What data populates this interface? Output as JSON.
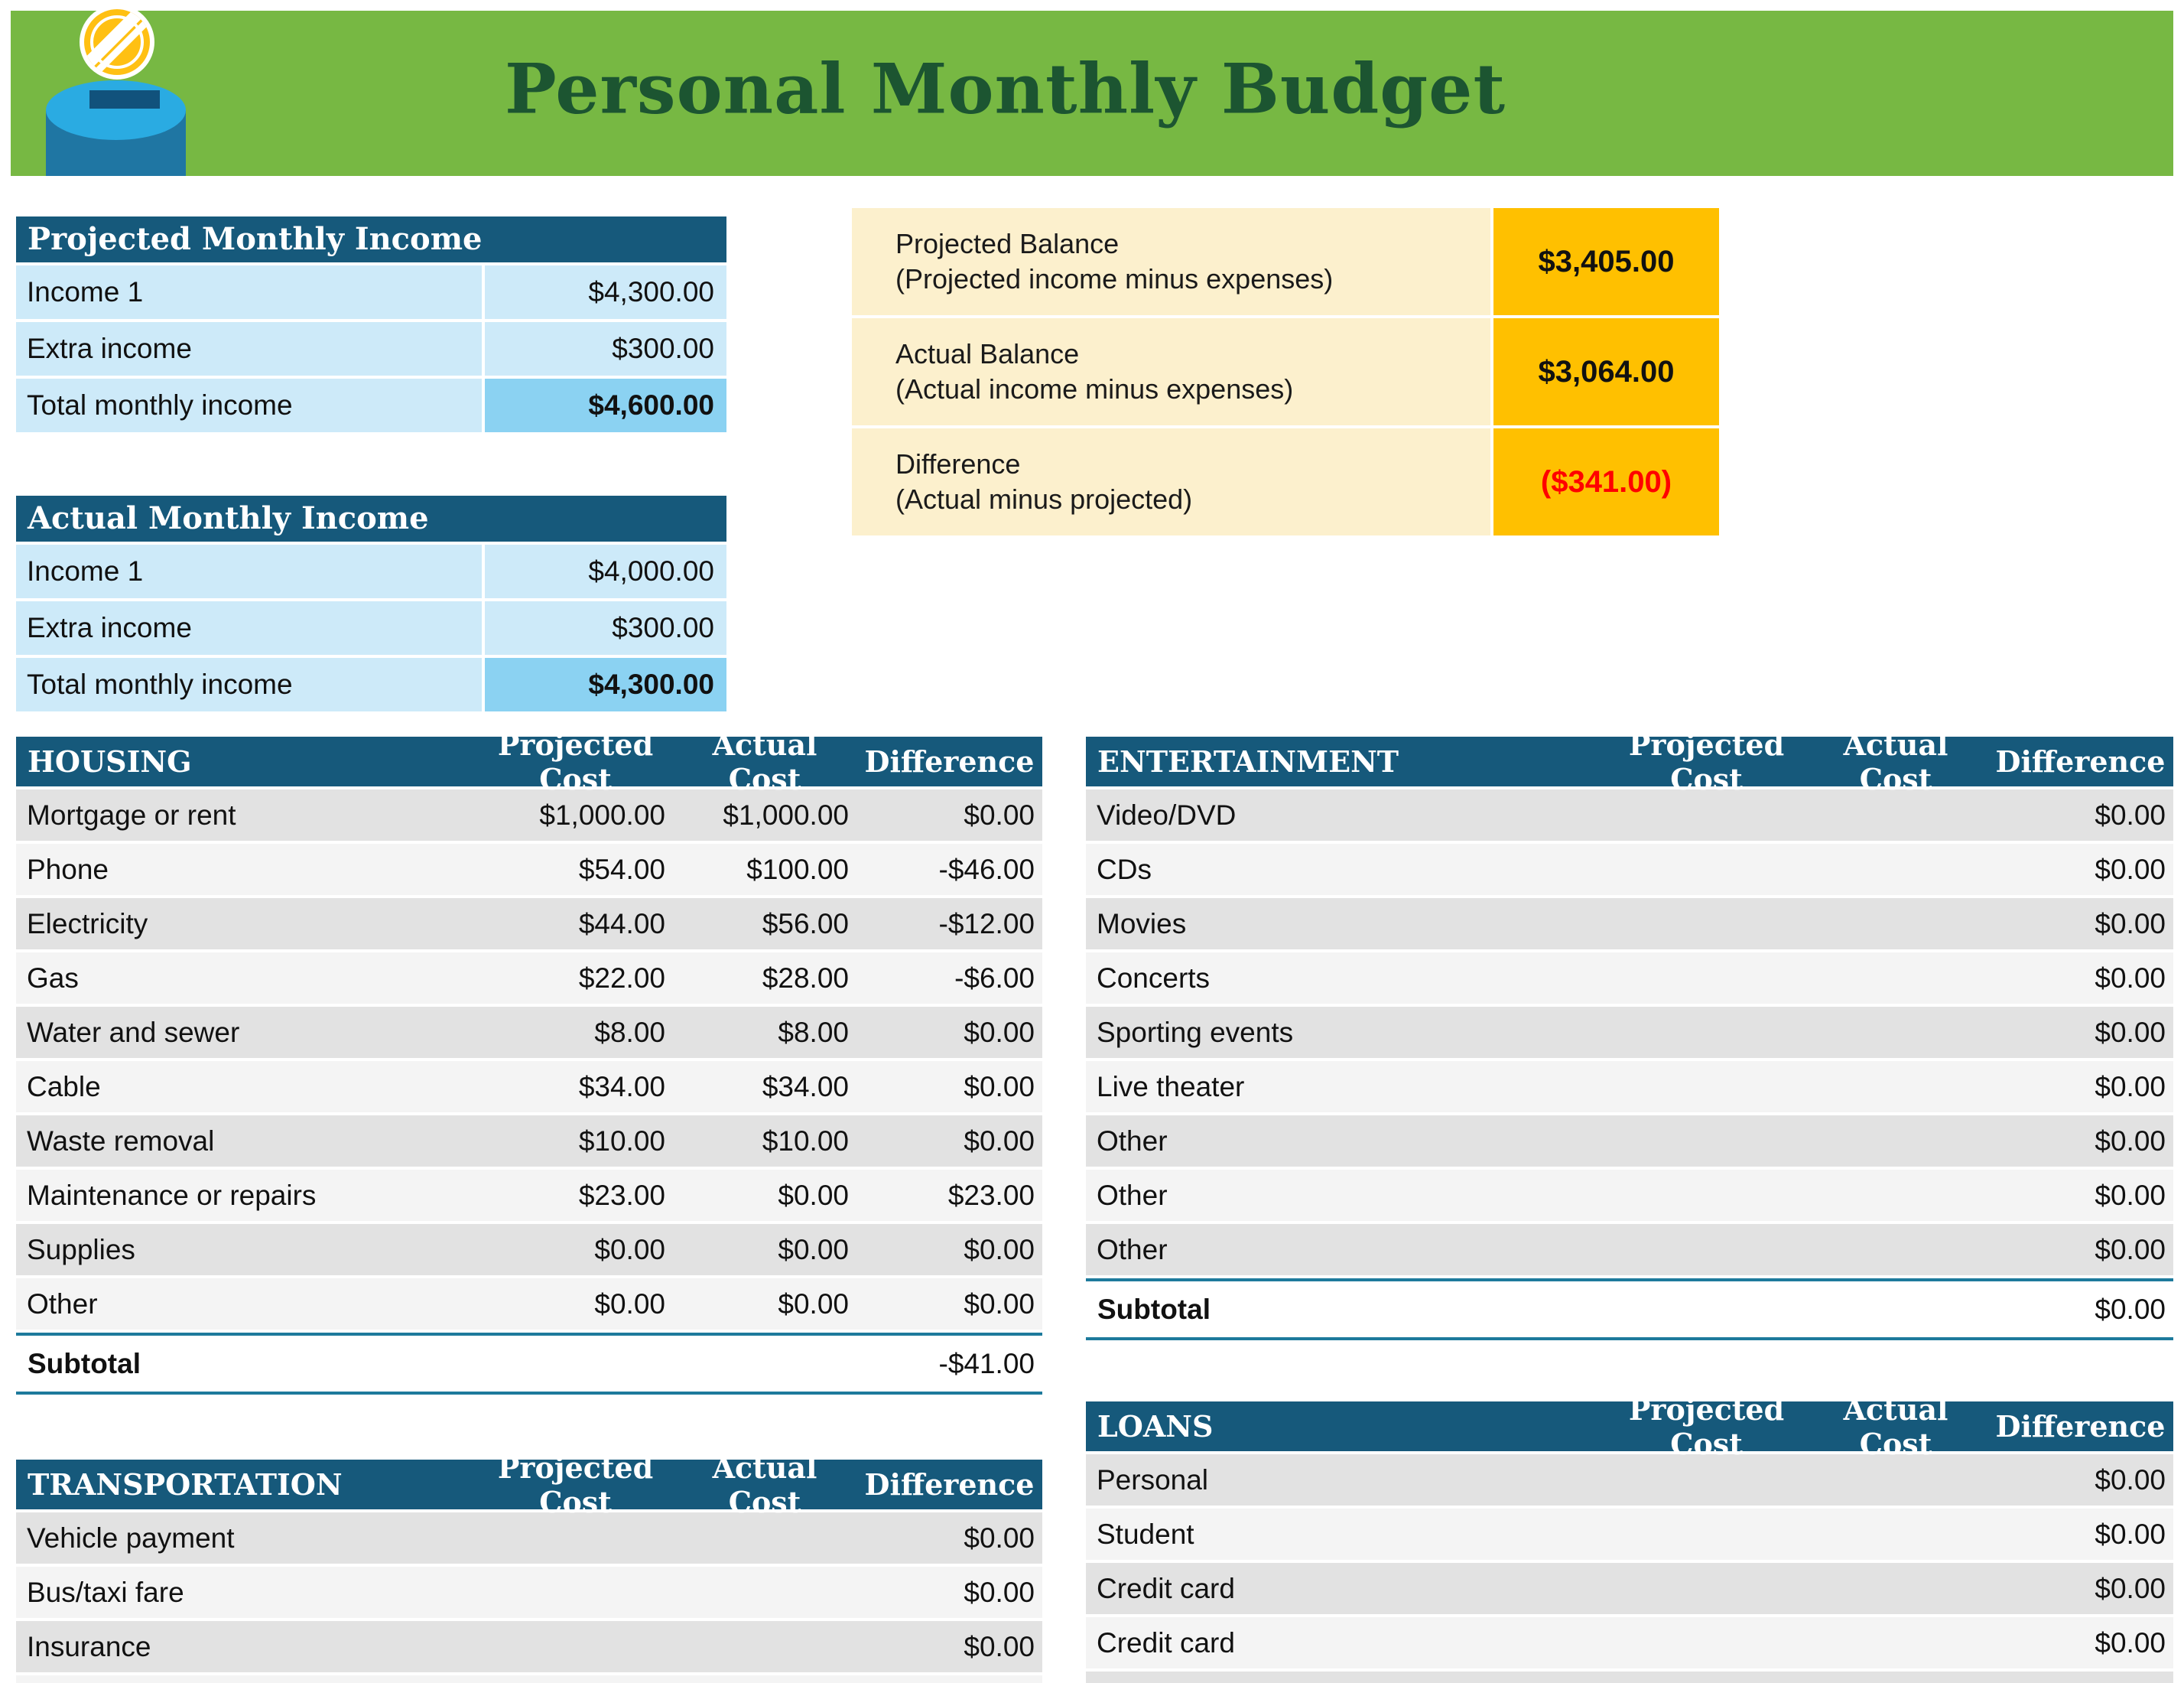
{
  "banner": {
    "title": "Personal Monthly Budget"
  },
  "theme": {
    "banner_green": "#77b843",
    "title_green": "#1c5531",
    "header_teal": "#16597b",
    "row_light_blue": "#cdeaf9",
    "total_blue": "#8bd2f2",
    "cream": "#fcf0cd",
    "gold": "#ffc000",
    "negative_red": "#ff0000",
    "row_gray": "#e2e2e2",
    "row_light_gray": "#f4f4f4",
    "subtotal_rule_teal": "#1d7a9c"
  },
  "projected_income": {
    "title": "Projected Monthly Income",
    "rows": [
      {
        "label": "Income 1",
        "value": "$4,300.00"
      },
      {
        "label": "Extra income",
        "value": "$300.00"
      }
    ],
    "total": {
      "label": "Total monthly income",
      "value": "$4,600.00"
    }
  },
  "actual_income": {
    "title": "Actual Monthly Income",
    "rows": [
      {
        "label": "Income 1",
        "value": "$4,000.00"
      },
      {
        "label": "Extra income",
        "value": "$300.00"
      }
    ],
    "total": {
      "label": "Total monthly income",
      "value": "$4,300.00"
    }
  },
  "balance": {
    "rows": [
      {
        "label": "Projected Balance",
        "sublabel": "(Projected income minus expenses)",
        "value": "$3,405.00",
        "negative": false
      },
      {
        "label": "Actual Balance",
        "sublabel": "(Actual income minus expenses)",
        "value": "$3,064.00",
        "negative": false
      },
      {
        "label": "Difference",
        "sublabel": "(Actual minus projected)",
        "value": "($341.00)",
        "negative": true
      }
    ]
  },
  "columns": {
    "projected": "Projected Cost",
    "actual": "Actual Cost",
    "difference": "Difference"
  },
  "housing": {
    "title": "HOUSING",
    "rows": [
      {
        "label": "Mortgage or rent",
        "projected": "$1,000.00",
        "actual": "$1,000.00",
        "difference": "$0.00"
      },
      {
        "label": "Phone",
        "projected": "$54.00",
        "actual": "$100.00",
        "difference": "-$46.00"
      },
      {
        "label": "Electricity",
        "projected": "$44.00",
        "actual": "$56.00",
        "difference": "-$12.00"
      },
      {
        "label": "Gas",
        "projected": "$22.00",
        "actual": "$28.00",
        "difference": "-$6.00"
      },
      {
        "label": "Water and sewer",
        "projected": "$8.00",
        "actual": "$8.00",
        "difference": "$0.00"
      },
      {
        "label": "Cable",
        "projected": "$34.00",
        "actual": "$34.00",
        "difference": "$0.00"
      },
      {
        "label": "Waste removal",
        "projected": "$10.00",
        "actual": "$10.00",
        "difference": "$0.00"
      },
      {
        "label": "Maintenance or repairs",
        "projected": "$23.00",
        "actual": "$0.00",
        "difference": "$23.00"
      },
      {
        "label": "Supplies",
        "projected": "$0.00",
        "actual": "$0.00",
        "difference": "$0.00"
      },
      {
        "label": "Other",
        "projected": "$0.00",
        "actual": "$0.00",
        "difference": "$0.00"
      }
    ],
    "subtotal": {
      "label": "Subtotal",
      "projected": "",
      "actual": "",
      "difference": "-$41.00"
    }
  },
  "entertainment": {
    "title": "ENTERTAINMENT",
    "rows": [
      {
        "label": "Video/DVD",
        "projected": "",
        "actual": "",
        "difference": "$0.00"
      },
      {
        "label": "CDs",
        "projected": "",
        "actual": "",
        "difference": "$0.00"
      },
      {
        "label": "Movies",
        "projected": "",
        "actual": "",
        "difference": "$0.00"
      },
      {
        "label": "Concerts",
        "projected": "",
        "actual": "",
        "difference": "$0.00"
      },
      {
        "label": "Sporting events",
        "projected": "",
        "actual": "",
        "difference": "$0.00"
      },
      {
        "label": "Live theater",
        "projected": "",
        "actual": "",
        "difference": "$0.00"
      },
      {
        "label": "Other",
        "projected": "",
        "actual": "",
        "difference": "$0.00"
      },
      {
        "label": "Other",
        "projected": "",
        "actual": "",
        "difference": "$0.00"
      },
      {
        "label": "Other",
        "projected": "",
        "actual": "",
        "difference": "$0.00"
      }
    ],
    "subtotal": {
      "label": "Subtotal",
      "projected": "",
      "actual": "",
      "difference": "$0.00"
    }
  },
  "transportation": {
    "title": "TRANSPORTATION",
    "rows": [
      {
        "label": "Vehicle payment",
        "projected": "",
        "actual": "",
        "difference": "$0.00"
      },
      {
        "label": "Bus/taxi fare",
        "projected": "",
        "actual": "",
        "difference": "$0.00"
      },
      {
        "label": "Insurance",
        "projected": "",
        "actual": "",
        "difference": "$0.00"
      }
    ]
  },
  "loans": {
    "title": "LOANS",
    "rows": [
      {
        "label": "Personal",
        "projected": "",
        "actual": "",
        "difference": "$0.00"
      },
      {
        "label": "Student",
        "projected": "",
        "actual": "",
        "difference": "$0.00"
      },
      {
        "label": "Credit card",
        "projected": "",
        "actual": "",
        "difference": "$0.00"
      },
      {
        "label": "Credit card",
        "projected": "",
        "actual": "",
        "difference": "$0.00"
      }
    ]
  }
}
